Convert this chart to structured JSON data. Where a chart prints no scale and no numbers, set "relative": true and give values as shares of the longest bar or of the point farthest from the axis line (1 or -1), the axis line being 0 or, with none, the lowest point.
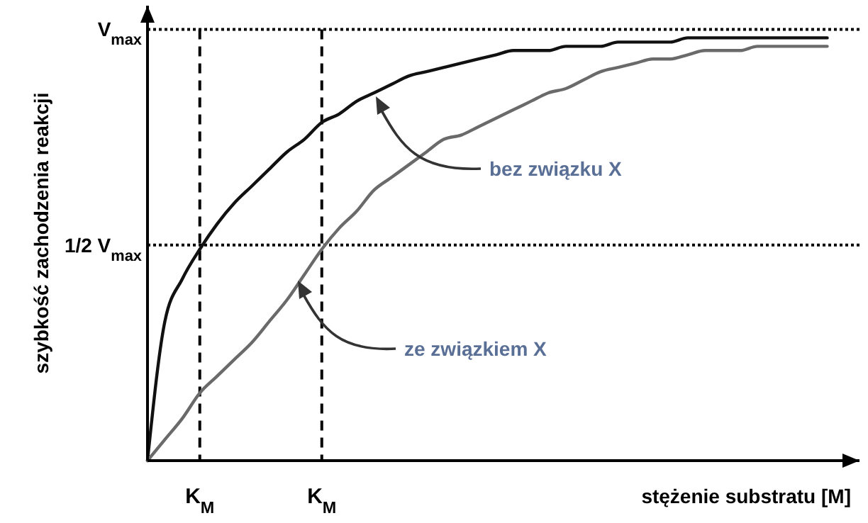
{
  "chart_data": {
    "type": "line",
    "xlabel": "stężenie substratu [M]",
    "ylabel": "szybkość zachodzenia reakcji",
    "relative": true,
    "categories": [
      null,
      null,
      null,
      "K$_{M}$",
      null,
      null,
      null,
      null,
      null,
      null,
      "K$_{M}$",
      null,
      null,
      null,
      null,
      null,
      null,
      null,
      null,
      null,
      null,
      null,
      null,
      null,
      null,
      null,
      null,
      null,
      null,
      null,
      null,
      null,
      null,
      null,
      null,
      null,
      null,
      null,
      null,
      null
    ],
    "series": [
      {
        "color": "#111111",
        "values": [
          0,
          0.33,
          0.43,
          0.5,
          0.56,
          0.61,
          0.65,
          0.69,
          0.73,
          0.76,
          0.8,
          0.82,
          0.85,
          0.87,
          0.89,
          0.91,
          0.92,
          0.93,
          0.94,
          0.95,
          0.96,
          0.97,
          0.97,
          0.97,
          0.98,
          0.98,
          0.98,
          0.99,
          0.99,
          0.99,
          0.99,
          1,
          1,
          1,
          1,
          1,
          1,
          1,
          1,
          1
        ]
      },
      {
        "color": "#6a6a6a",
        "values": [
          0,
          0.05,
          0.1,
          0.16,
          0.2,
          0.24,
          0.28,
          0.33,
          0.38,
          0.44,
          0.5,
          0.55,
          0.59,
          0.64,
          0.67,
          0.7,
          0.73,
          0.76,
          0.77,
          0.79,
          0.81,
          0.83,
          0.85,
          0.87,
          0.88,
          0.9,
          0.92,
          0.93,
          0.94,
          0.95,
          0.95,
          0.96,
          0.97,
          0.97,
          0.97,
          0.98,
          0.98,
          0.98,
          0.98,
          0.98
        ]
      }
    ],
    "ref_lines": [
      {
        "axis": "y",
        "value": 1.02,
        "label": "V$_{max}$",
        "line_style": "dotted",
        "color": "#000000"
      },
      {
        "axis": "y",
        "value": 0.51,
        "label": "1/2 V$_{max}$",
        "line_style": "dotted",
        "color": "#000000"
      }
    ],
    "grid": "x",
    "annotations": [
      "bez związku X",
      "ze związkiem X"
    ]
  }
}
